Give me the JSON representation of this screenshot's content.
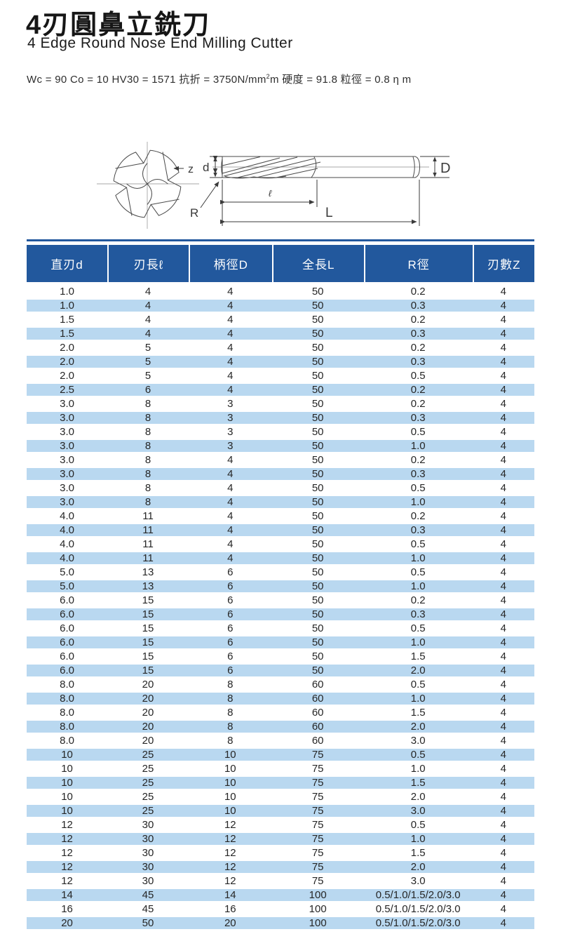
{
  "header": {
    "title_zh": "4刃圓鼻立銑刀",
    "title_en": "4 Edge Round Nose End Milling Cutter",
    "spec": {
      "part1": "Wc = 90 Co = 10 HV30 = 1571 抗折 = 3750N/mm",
      "sup": "2",
      "part2": "m 硬度 = 91.8 粒徑 = 0.8 η m"
    }
  },
  "diagram": {
    "label_z": "z",
    "label_d": "d",
    "label_D": "D",
    "label_l": "ℓ",
    "label_L": "L",
    "label_R": "R"
  },
  "table": {
    "headers": [
      "直刃d",
      "刃長ℓ",
      "柄徑D",
      "全長L",
      "R徑",
      "刃數Z"
    ],
    "rows": [
      [
        "1.0",
        "4",
        "4",
        "50",
        "0.2",
        "4"
      ],
      [
        "1.0",
        "4",
        "4",
        "50",
        "0.3",
        "4"
      ],
      [
        "1.5",
        "4",
        "4",
        "50",
        "0.2",
        "4"
      ],
      [
        "1.5",
        "4",
        "4",
        "50",
        "0.3",
        "4"
      ],
      [
        "2.0",
        "5",
        "4",
        "50",
        "0.2",
        "4"
      ],
      [
        "2.0",
        "5",
        "4",
        "50",
        "0.3",
        "4"
      ],
      [
        "2.0",
        "5",
        "4",
        "50",
        "0.5",
        "4"
      ],
      [
        "2.5",
        "6",
        "4",
        "50",
        "0.2",
        "4"
      ],
      [
        "3.0",
        "8",
        "3",
        "50",
        "0.2",
        "4"
      ],
      [
        "3.0",
        "8",
        "3",
        "50",
        "0.3",
        "4"
      ],
      [
        "3.0",
        "8",
        "3",
        "50",
        "0.5",
        "4"
      ],
      [
        "3.0",
        "8",
        "3",
        "50",
        "1.0",
        "4"
      ],
      [
        "3.0",
        "8",
        "4",
        "50",
        "0.2",
        "4"
      ],
      [
        "3.0",
        "8",
        "4",
        "50",
        "0.3",
        "4"
      ],
      [
        "3.0",
        "8",
        "4",
        "50",
        "0.5",
        "4"
      ],
      [
        "3.0",
        "8",
        "4",
        "50",
        "1.0",
        "4"
      ],
      [
        "4.0",
        "11",
        "4",
        "50",
        "0.2",
        "4"
      ],
      [
        "4.0",
        "11",
        "4",
        "50",
        "0.3",
        "4"
      ],
      [
        "4.0",
        "11",
        "4",
        "50",
        "0.5",
        "4"
      ],
      [
        "4.0",
        "11",
        "4",
        "50",
        "1.0",
        "4"
      ],
      [
        "5.0",
        "13",
        "6",
        "50",
        "0.5",
        "4"
      ],
      [
        "5.0",
        "13",
        "6",
        "50",
        "1.0",
        "4"
      ],
      [
        "6.0",
        "15",
        "6",
        "50",
        "0.2",
        "4"
      ],
      [
        "6.0",
        "15",
        "6",
        "50",
        "0.3",
        "4"
      ],
      [
        "6.0",
        "15",
        "6",
        "50",
        "0.5",
        "4"
      ],
      [
        "6.0",
        "15",
        "6",
        "50",
        "1.0",
        "4"
      ],
      [
        "6.0",
        "15",
        "6",
        "50",
        "1.5",
        "4"
      ],
      [
        "6.0",
        "15",
        "6",
        "50",
        "2.0",
        "4"
      ],
      [
        "8.0",
        "20",
        "8",
        "60",
        "0.5",
        "4"
      ],
      [
        "8.0",
        "20",
        "8",
        "60",
        "1.0",
        "4"
      ],
      [
        "8.0",
        "20",
        "8",
        "60",
        "1.5",
        "4"
      ],
      [
        "8.0",
        "20",
        "8",
        "60",
        "2.0",
        "4"
      ],
      [
        "8.0",
        "20",
        "8",
        "60",
        "3.0",
        "4"
      ],
      [
        "10",
        "25",
        "10",
        "75",
        "0.5",
        "4"
      ],
      [
        "10",
        "25",
        "10",
        "75",
        "1.0",
        "4"
      ],
      [
        "10",
        "25",
        "10",
        "75",
        "1.5",
        "4"
      ],
      [
        "10",
        "25",
        "10",
        "75",
        "2.0",
        "4"
      ],
      [
        "10",
        "25",
        "10",
        "75",
        "3.0",
        "4"
      ],
      [
        "12",
        "30",
        "12",
        "75",
        "0.5",
        "4"
      ],
      [
        "12",
        "30",
        "12",
        "75",
        "1.0",
        "4"
      ],
      [
        "12",
        "30",
        "12",
        "75",
        "1.5",
        "4"
      ],
      [
        "12",
        "30",
        "12",
        "75",
        "2.0",
        "4"
      ],
      [
        "12",
        "30",
        "12",
        "75",
        "3.0",
        "4"
      ],
      [
        "14",
        "45",
        "14",
        "100",
        "0.5/1.0/1.5/2.0/3.0",
        "4"
      ],
      [
        "16",
        "45",
        "16",
        "100",
        "0.5/1.0/1.5/2.0/3.0",
        "4"
      ],
      [
        "20",
        "50",
        "20",
        "100",
        "0.5/1.0/1.5/2.0/3.0",
        "4"
      ]
    ]
  },
  "colors": {
    "header_bg": "#22589d",
    "row_alt_bg": "#b9d8f0",
    "table_border": "#22589d"
  }
}
